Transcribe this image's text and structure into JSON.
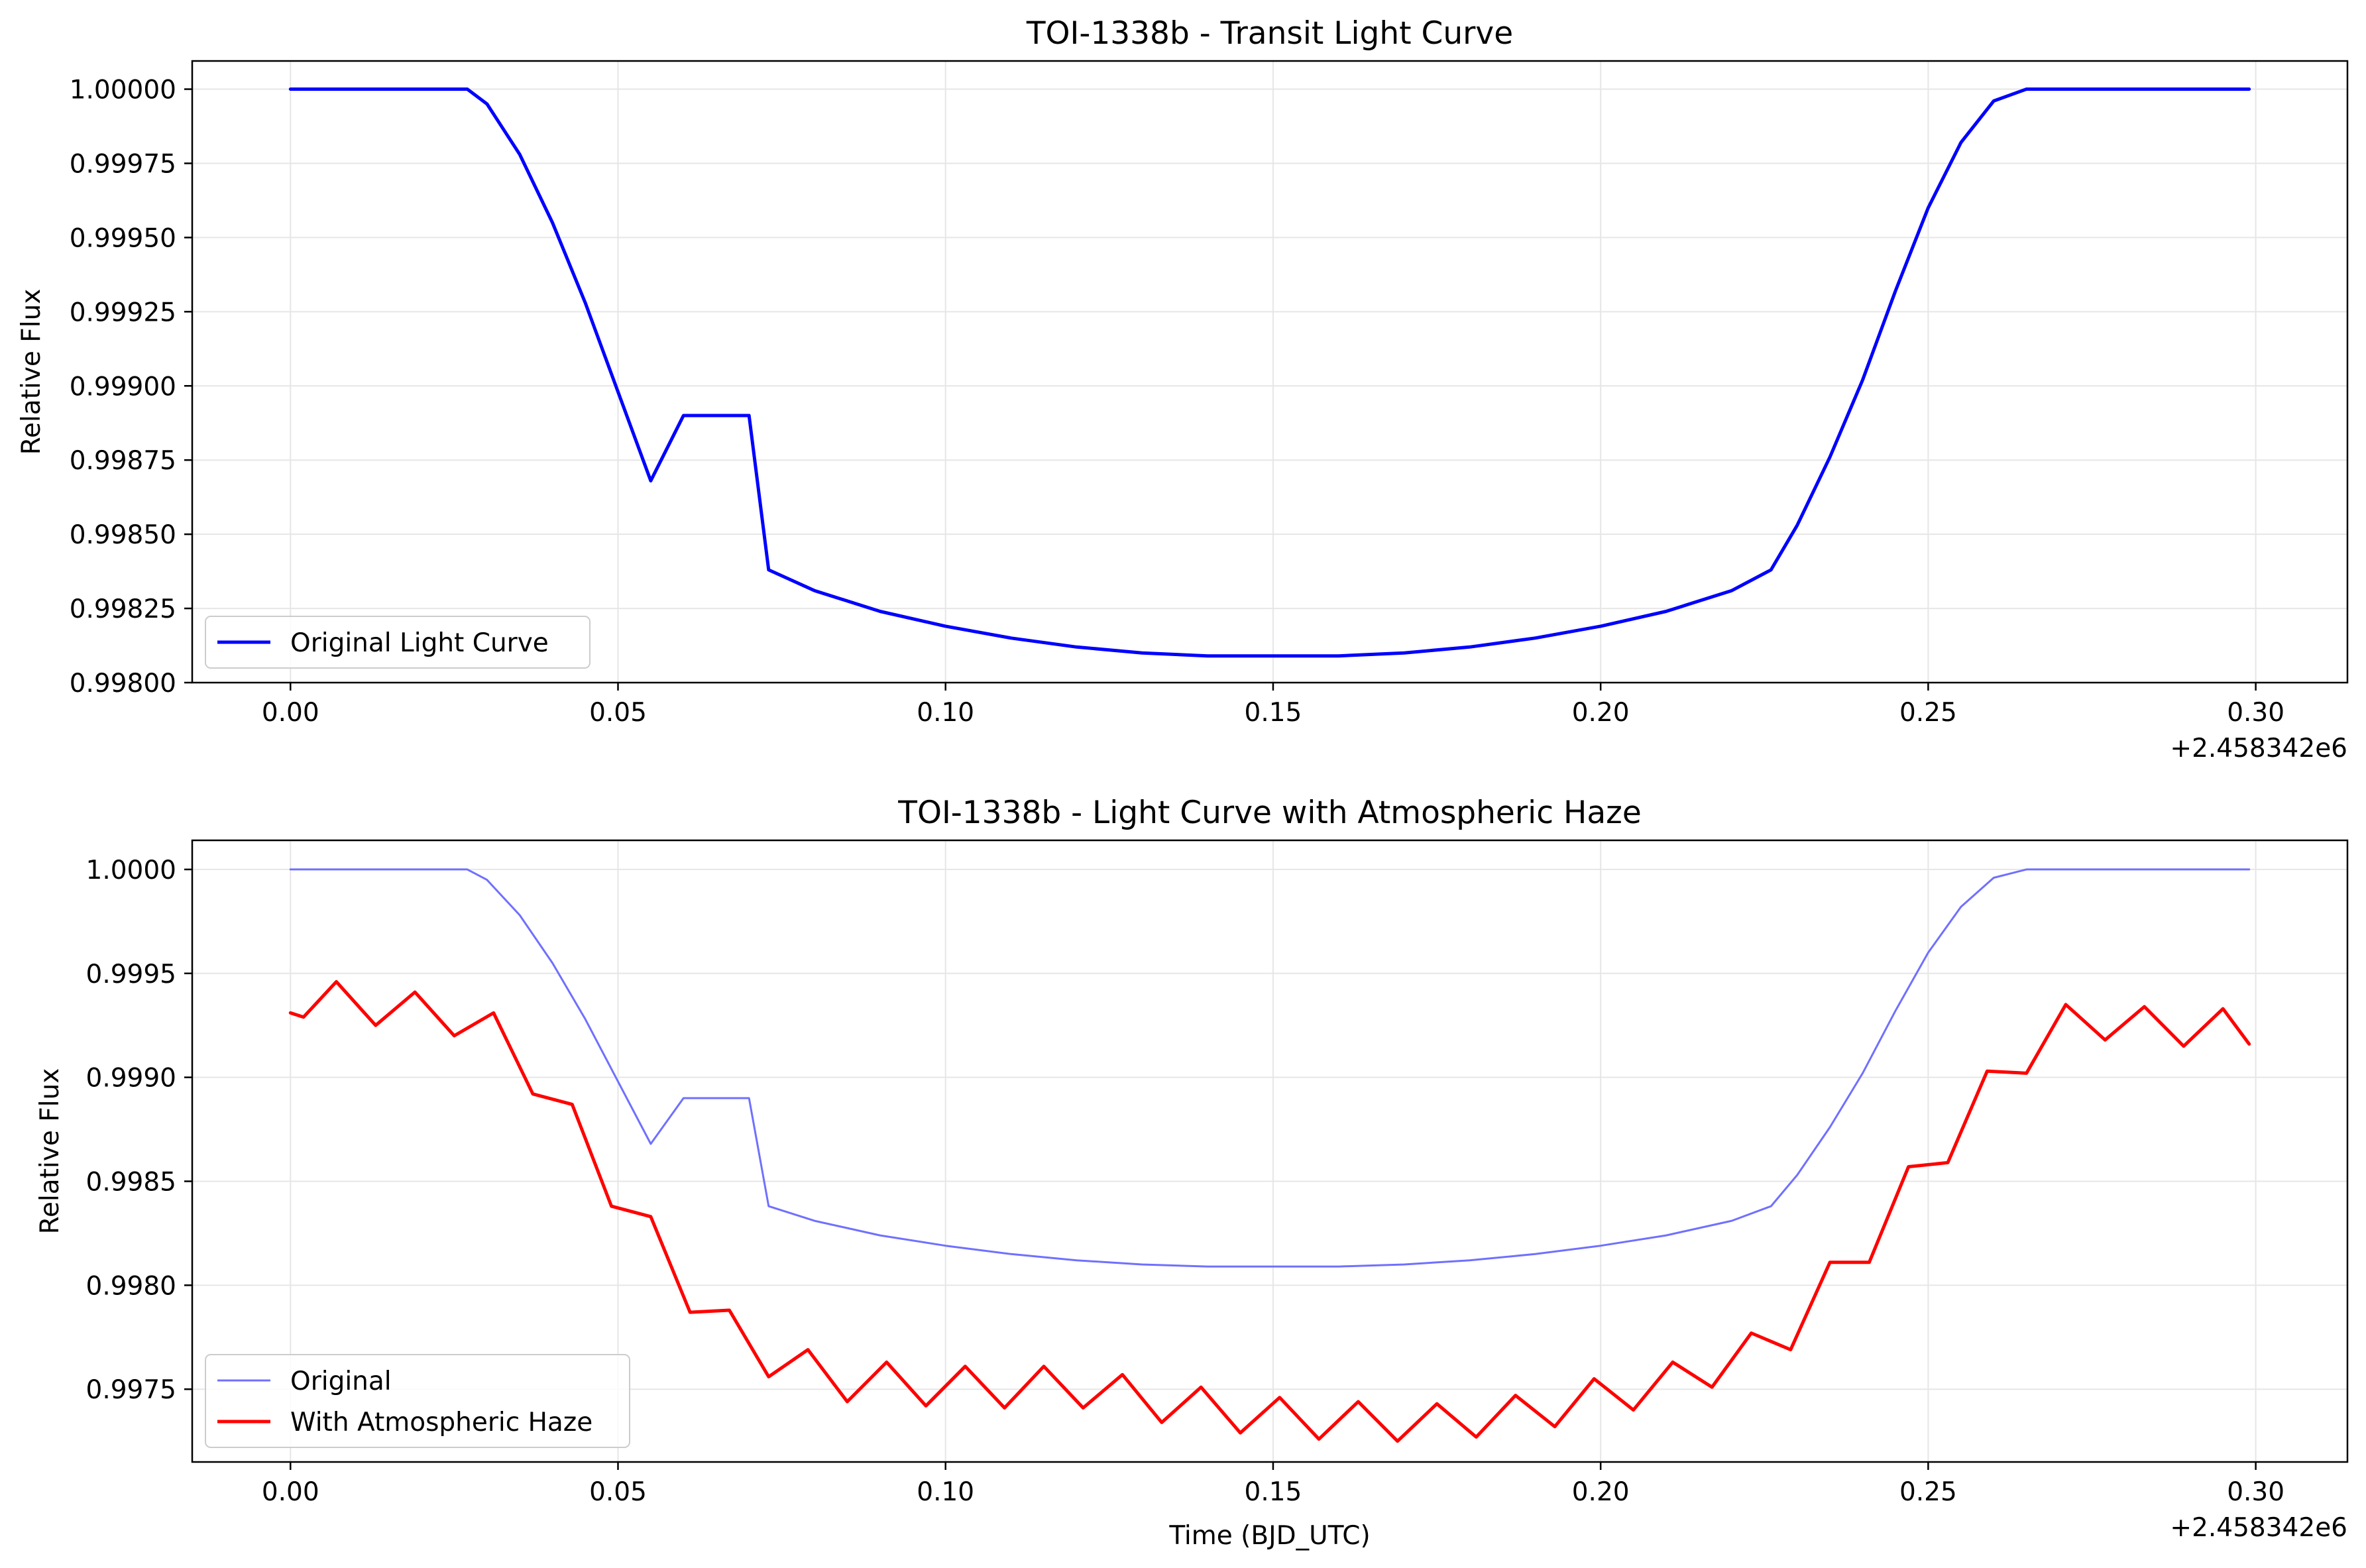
{
  "chart_data": [
    {
      "type": "line",
      "title": "TOI-1338b - Transit Light Curve",
      "xlabel": "",
      "ylabel": "Relative Flux",
      "x_offset_label": "+2.458342e6",
      "xlim": [
        -0.015,
        0.314
      ],
      "ylim": [
        0.998,
        1.000095
      ],
      "xticks": [
        0.0,
        0.05,
        0.1,
        0.15,
        0.2,
        0.25,
        0.3
      ],
      "xtick_labels": [
        "0.00",
        "0.05",
        "0.10",
        "0.15",
        "0.20",
        "0.25",
        "0.30"
      ],
      "yticks": [
        0.998,
        0.99825,
        0.9985,
        0.99875,
        0.999,
        0.99925,
        0.9995,
        0.99975,
        1.0
      ],
      "ytick_labels": [
        "0.99800",
        "0.99825",
        "0.99850",
        "0.99875",
        "0.99900",
        "0.99925",
        "0.99950",
        "0.99975",
        "1.00000"
      ],
      "grid": true,
      "legend_position": "lower-left",
      "series": [
        {
          "name": "Original Light Curve",
          "color": "#0000ff",
          "x": [
            0.0,
            0.027,
            0.03,
            0.035,
            0.04,
            0.045,
            0.05,
            0.055,
            0.06,
            0.065,
            0.07,
            0.073,
            0.08,
            0.09,
            0.1,
            0.11,
            0.12,
            0.13,
            0.14,
            0.15,
            0.16,
            0.17,
            0.18,
            0.19,
            0.2,
            0.21,
            0.22,
            0.226,
            0.23,
            0.235,
            0.24,
            0.245,
            0.25,
            0.255,
            0.26,
            0.265,
            0.27,
            0.272,
            0.285,
            0.299
          ],
          "values": [
            1.0,
            1.0,
            0.99995,
            0.99978,
            0.99955,
            0.99928,
            0.99898,
            0.99868,
            0.9989,
            0.9989,
            0.9989,
            0.99838,
            0.99831,
            0.99824,
            0.99819,
            0.99815,
            0.99812,
            0.9981,
            0.99809,
            0.99809,
            0.99809,
            0.9981,
            0.99812,
            0.99815,
            0.99819,
            0.99824,
            0.99831,
            0.99838,
            0.99853,
            0.99876,
            0.99902,
            0.99932,
            0.9996,
            0.99982,
            0.99996,
            1.0,
            1.0,
            1.0,
            1.0,
            1.0
          ]
        }
      ]
    },
    {
      "type": "line",
      "title": "TOI-1338b - Light Curve with Atmospheric Haze",
      "xlabel": "Time (BJD_UTC)",
      "ylabel": "Relative Flux",
      "x_offset_label": "+2.458342e6",
      "xlim": [
        -0.015,
        0.314
      ],
      "ylim": [
        0.99715,
        1.00014
      ],
      "xticks": [
        0.0,
        0.05,
        0.1,
        0.15,
        0.2,
        0.25,
        0.3
      ],
      "xtick_labels": [
        "0.00",
        "0.05",
        "0.10",
        "0.15",
        "0.20",
        "0.25",
        "0.30"
      ],
      "yticks": [
        0.9975,
        0.998,
        0.9985,
        0.999,
        0.9995,
        1.0
      ],
      "ytick_labels": [
        "0.9975",
        "0.9980",
        "0.9985",
        "0.9990",
        "0.9995",
        "1.0000"
      ],
      "grid": true,
      "legend_position": "lower-left",
      "series": [
        {
          "name": "Original",
          "color": "#7070ff",
          "x": [
            0.0,
            0.027,
            0.03,
            0.035,
            0.04,
            0.045,
            0.05,
            0.055,
            0.06,
            0.065,
            0.07,
            0.073,
            0.08,
            0.09,
            0.1,
            0.11,
            0.12,
            0.13,
            0.14,
            0.15,
            0.16,
            0.17,
            0.18,
            0.19,
            0.2,
            0.21,
            0.22,
            0.226,
            0.23,
            0.235,
            0.24,
            0.245,
            0.25,
            0.255,
            0.26,
            0.265,
            0.27,
            0.272,
            0.285,
            0.299
          ],
          "values": [
            1.0,
            1.0,
            0.99995,
            0.99978,
            0.99955,
            0.99928,
            0.99898,
            0.99868,
            0.9989,
            0.9989,
            0.9989,
            0.99838,
            0.99831,
            0.99824,
            0.99819,
            0.99815,
            0.99812,
            0.9981,
            0.99809,
            0.99809,
            0.99809,
            0.9981,
            0.99812,
            0.99815,
            0.99819,
            0.99824,
            0.99831,
            0.99838,
            0.99853,
            0.99876,
            0.99902,
            0.99932,
            0.9996,
            0.99982,
            0.99996,
            1.0,
            1.0,
            1.0,
            1.0,
            1.0
          ]
        },
        {
          "name": "With Atmospheric Haze",
          "color": "#ff0000",
          "x": [
            0.0,
            0.002,
            0.007,
            0.013,
            0.019,
            0.025,
            0.031,
            0.037,
            0.043,
            0.049,
            0.055,
            0.061,
            0.067,
            0.073,
            0.079,
            0.085,
            0.091,
            0.097,
            0.103,
            0.109,
            0.115,
            0.121,
            0.127,
            0.133,
            0.139,
            0.145,
            0.151,
            0.157,
            0.163,
            0.169,
            0.175,
            0.181,
            0.187,
            0.193,
            0.199,
            0.205,
            0.211,
            0.217,
            0.223,
            0.229,
            0.235,
            0.241,
            0.247,
            0.253,
            0.259,
            0.265,
            0.271,
            0.277,
            0.283,
            0.289,
            0.295,
            0.299
          ],
          "values": [
            0.99931,
            0.99929,
            0.99946,
            0.99925,
            0.99941,
            0.9992,
            0.99931,
            0.99892,
            0.99887,
            0.99838,
            0.99833,
            0.99787,
            0.99788,
            0.99756,
            0.99769,
            0.99744,
            0.99763,
            0.99742,
            0.99761,
            0.99741,
            0.99761,
            0.99741,
            0.99757,
            0.99734,
            0.99751,
            0.99729,
            0.99746,
            0.99726,
            0.99744,
            0.99725,
            0.99743,
            0.99727,
            0.99747,
            0.99732,
            0.99755,
            0.9974,
            0.99763,
            0.99751,
            0.99777,
            0.99769,
            0.99811,
            0.99811,
            0.99857,
            0.99859,
            0.99903,
            0.99902,
            0.99935,
            0.99918,
            0.99934,
            0.99915,
            0.99933,
            0.99916
          ]
        }
      ]
    }
  ]
}
